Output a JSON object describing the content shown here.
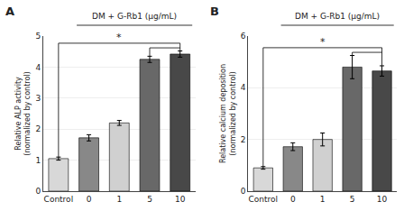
{
  "chart_data": [
    {
      "type": "bar",
      "title": "A",
      "categories": [
        "Control",
        "0",
        "1",
        "5",
        "10"
      ],
      "values": [
        1.05,
        1.72,
        2.2,
        4.25,
        4.42
      ],
      "errors": [
        0.05,
        0.1,
        0.08,
        0.1,
        0.1
      ],
      "colors": [
        "#d8d8d8",
        "#888888",
        "#d0d0d0",
        "#686868",
        "#484848"
      ],
      "ylabel": "Relative ALP activity\n(normalized by control)",
      "ylim": [
        0,
        5
      ],
      "yticks": [
        0,
        1,
        2,
        3,
        4,
        5
      ],
      "annotations": [
        "DM + G-Rb1 (μg/mL)",
        "*"
      ]
    },
    {
      "type": "bar",
      "title": "B",
      "categories": [
        "Control",
        "0",
        "1",
        "5",
        "10"
      ],
      "values": [
        0.9,
        1.72,
        2.0,
        4.8,
        4.65
      ],
      "errors": [
        0.05,
        0.15,
        0.25,
        0.45,
        0.2
      ],
      "colors": [
        "#d8d8d8",
        "#888888",
        "#d0d0d0",
        "#686868",
        "#484848"
      ],
      "ylabel": "Relative calcium deposition\n(normalized by control)",
      "ylim": [
        0,
        6
      ],
      "yticks": [
        0,
        2,
        4,
        6
      ],
      "annotations": [
        "DM + G-Rb1 (μg/mL)",
        "*"
      ]
    }
  ]
}
